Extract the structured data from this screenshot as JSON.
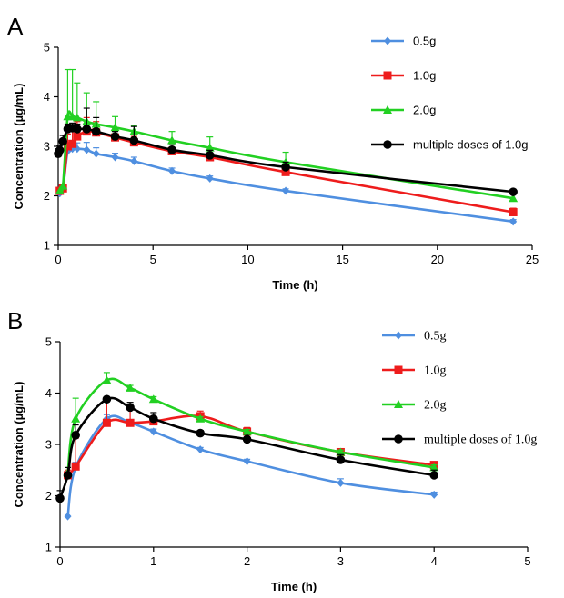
{
  "chart_data": [
    {
      "type": "line",
      "panel": "A",
      "xlabel": "Time (h)",
      "ylabel": "Concentration (µg/mL)",
      "xlim": [
        0,
        25
      ],
      "ylim": [
        1,
        5
      ],
      "xticks": [
        0,
        5,
        10,
        15,
        20,
        25
      ],
      "yticks": [
        1,
        2,
        3,
        4,
        5
      ],
      "grid": false,
      "legend": "top-right",
      "series": [
        {
          "name": "0.5g",
          "color": "#4f8fe0",
          "marker": "diamond",
          "x": [
            0.083,
            0.25,
            0.5,
            0.75,
            1,
            1.5,
            2,
            3,
            4,
            6,
            8,
            12,
            24
          ],
          "y": [
            2.05,
            2.15,
            2.9,
            2.95,
            2.95,
            2.93,
            2.85,
            2.78,
            2.7,
            2.5,
            2.35,
            2.1,
            1.48
          ],
          "err": [
            0,
            0,
            0,
            0.1,
            0.12,
            0.15,
            0.12,
            0.08,
            0.08,
            0.06,
            0.05,
            0.04,
            0.04
          ]
        },
        {
          "name": "1.0g",
          "color": "#ee1c1c",
          "marker": "square",
          "x": [
            0.083,
            0.25,
            0.5,
            0.75,
            1,
            1.5,
            2,
            3,
            4,
            6,
            8,
            12,
            24
          ],
          "y": [
            2.1,
            2.15,
            3.0,
            3.05,
            3.2,
            3.3,
            3.28,
            3.18,
            3.08,
            2.9,
            2.78,
            2.48,
            1.67
          ],
          "err": [
            0.05,
            0.08,
            0.25,
            0.3,
            0.3,
            0.28,
            0.22,
            0.15,
            0.12,
            0.08,
            0.08,
            0.1,
            0.08
          ]
        },
        {
          "name": "2.0g",
          "color": "#22d022",
          "marker": "triangle",
          "x": [
            0.083,
            0.25,
            0.5,
            0.75,
            1,
            1.5,
            2,
            3,
            4,
            6,
            8,
            12,
            24
          ],
          "y": [
            2.1,
            2.2,
            3.6,
            3.6,
            3.58,
            3.5,
            3.45,
            3.38,
            3.3,
            3.12,
            2.97,
            2.68,
            1.95
          ],
          "err": [
            0,
            0,
            0.95,
            0.95,
            0.7,
            0.58,
            0.45,
            0.22,
            0.12,
            0.18,
            0.22,
            0.2,
            0
          ]
        },
        {
          "name": "multiple doses of 1.0g",
          "color": "#000000",
          "marker": "circle",
          "x": [
            0,
            0.083,
            0.25,
            0.5,
            0.75,
            1,
            1.5,
            2,
            3,
            4,
            6,
            8,
            12,
            24
          ],
          "y": [
            2.85,
            2.92,
            3.1,
            3.35,
            3.37,
            3.35,
            3.35,
            3.3,
            3.2,
            3.12,
            2.93,
            2.82,
            2.58,
            2.08
          ],
          "err": [
            0.1,
            0.1,
            0.12,
            0.1,
            0.1,
            0.1,
            0.42,
            0.28,
            0.1,
            0.28,
            0.1,
            0.1,
            0.1,
            0.04
          ]
        }
      ]
    },
    {
      "type": "line",
      "panel": "B",
      "xlabel": "Time (h)",
      "ylabel": "Concentration (µg/mL)",
      "xlim": [
        0,
        5
      ],
      "ylim": [
        1,
        5
      ],
      "xticks": [
        0,
        1,
        2,
        3,
        4,
        5
      ],
      "yticks": [
        1,
        2,
        3,
        4,
        5
      ],
      "grid": false,
      "legend": "top-right",
      "series": [
        {
          "name": "0.5g",
          "color": "#4f8fe0",
          "marker": "diamond",
          "x": [
            0.083,
            0.167,
            0.5,
            0.75,
            1,
            1.5,
            2,
            3,
            4
          ],
          "y": [
            1.6,
            2.55,
            3.5,
            3.42,
            3.25,
            2.9,
            2.67,
            2.25,
            2.02
          ],
          "err": [
            0,
            0.1,
            0.08,
            0.06,
            0.05,
            0.04,
            0.04,
            0.08,
            0.05
          ]
        },
        {
          "name": "1.0g",
          "color": "#ee1c1c",
          "marker": "square",
          "x": [
            0.083,
            0.167,
            0.5,
            0.75,
            1,
            1.5,
            2,
            3,
            4
          ],
          "y": [
            2.4,
            2.57,
            3.42,
            3.42,
            3.45,
            3.55,
            3.25,
            2.85,
            2.6
          ],
          "err": [
            0.1,
            0.55,
            0.45,
            0.25,
            0.1,
            0.1,
            0.08,
            0.06,
            0.06
          ]
        },
        {
          "name": "2.0g",
          "color": "#22d022",
          "marker": "triangle",
          "x": [
            0.083,
            0.167,
            0.5,
            0.75,
            1,
            1.5,
            2,
            3,
            4
          ],
          "y": [
            2.45,
            3.5,
            4.25,
            4.1,
            3.88,
            3.5,
            3.25,
            2.85,
            2.55
          ],
          "err": [
            0.1,
            0.4,
            0.15,
            0.05,
            0.05,
            0.04,
            0.04,
            0.04,
            0.05
          ]
        },
        {
          "name": "multiple doses of 1.0g",
          "color": "#000000",
          "marker": "circle",
          "x": [
            0,
            0.083,
            0.167,
            0.5,
            0.75,
            1,
            1.5,
            2,
            3,
            4
          ],
          "y": [
            1.95,
            2.4,
            3.18,
            3.88,
            3.72,
            3.5,
            3.22,
            3.1,
            2.7,
            2.4
          ],
          "err": [
            0.15,
            0.15,
            0.2,
            0.05,
            0.1,
            0.12,
            0.05,
            0.1,
            0.1,
            0.1
          ]
        }
      ]
    }
  ]
}
